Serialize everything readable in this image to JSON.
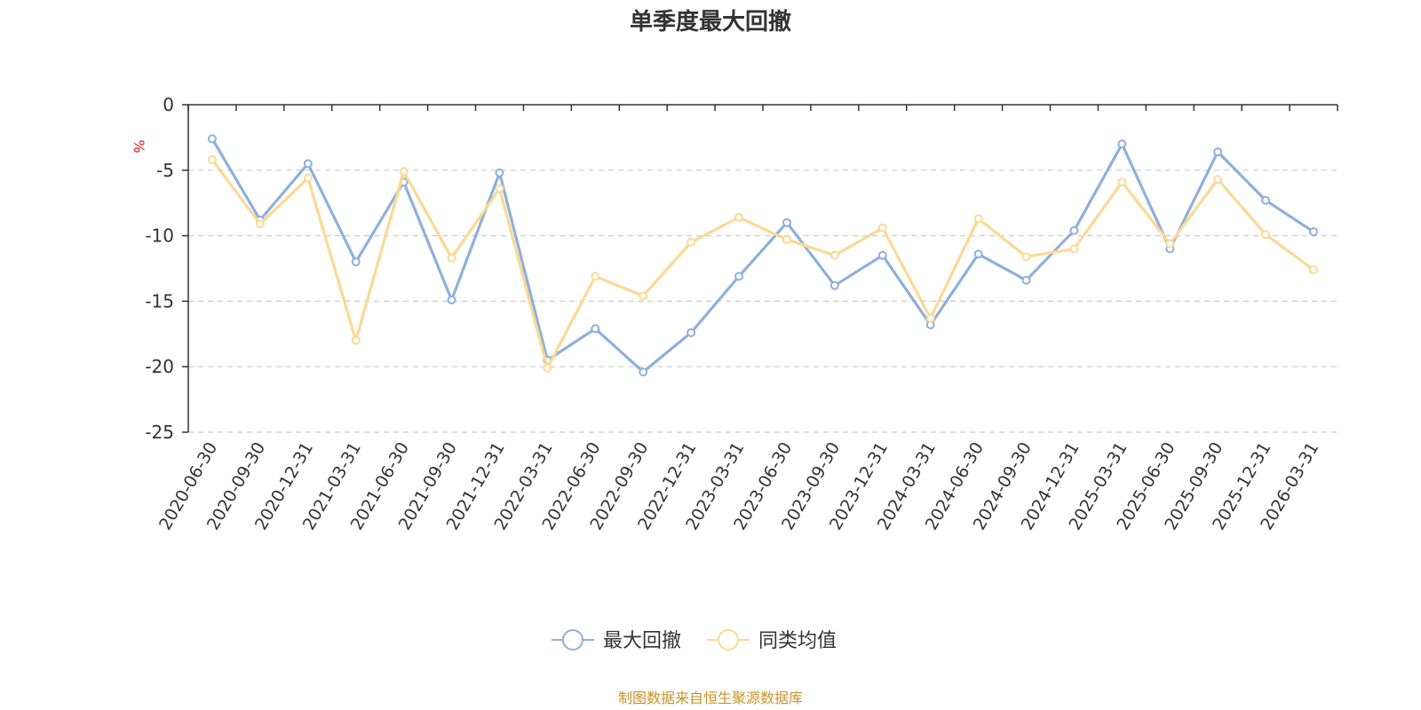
{
  "chart_data": {
    "type": "line",
    "title": "单季度最大回撤",
    "y_unit": "%",
    "ylim": [
      -25,
      0
    ],
    "y_ticks": [
      0,
      -5,
      -10,
      -15,
      -20,
      -25
    ],
    "grid": "horizontal dashed",
    "legend_position": "bottom",
    "categories": [
      "2020-06-30",
      "2020-09-30",
      "2020-12-31",
      "2021-03-31",
      "2021-06-30",
      "2021-09-30",
      "2021-12-31",
      "2022-03-31",
      "2022-06-30",
      "2022-09-30",
      "2022-12-31",
      "2023-03-31",
      "2023-06-30",
      "2023-09-30",
      "2023-12-31",
      "2024-03-31",
      "2024-06-30",
      "2024-09-30",
      "2024-12-31",
      "2025-03-31",
      "2025-06-30",
      "2025-09-30",
      "2025-12-31",
      "2026-03-31"
    ],
    "series": [
      {
        "name": "最大回撤",
        "color": "#8eb0dc",
        "values": [
          -2.6,
          -8.8,
          -4.5,
          -12.0,
          -5.9,
          -14.9,
          -5.2,
          -19.5,
          -17.1,
          -20.4,
          -17.4,
          -13.1,
          -9.0,
          -13.8,
          -11.5,
          -16.8,
          -11.4,
          -13.4,
          -9.6,
          -3.0,
          -11.0,
          -3.6,
          -7.3,
          -9.7
        ]
      },
      {
        "name": "同类均值",
        "color": "#fbd995",
        "values": [
          -4.2,
          -9.1,
          -5.6,
          -18.0,
          -5.1,
          -11.7,
          -6.4,
          -20.1,
          -13.1,
          -14.6,
          -10.5,
          -8.6,
          -10.3,
          -11.5,
          -9.4,
          -16.3,
          -8.7,
          -11.6,
          -11.0,
          -5.9,
          -10.6,
          -5.7,
          -9.9,
          -12.6
        ]
      }
    ]
  },
  "footer": {
    "source": "制图数据来自恒生聚源数据库"
  }
}
